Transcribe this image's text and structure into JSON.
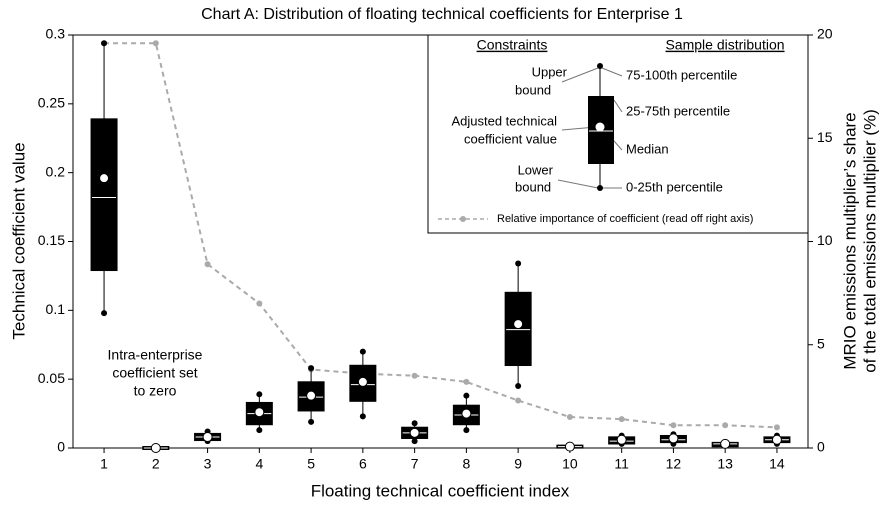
{
  "chart_data": {
    "type": "box",
    "title": "Chart A: Distribution of floating technical coefficients for Enterprise 1",
    "xlabel": "Floating technical coefficient index",
    "ylabel": "Technical coefficient value",
    "y2label": [
      "MRIO emissions multiplier’s share",
      "of the total emissions multiplier (%)"
    ],
    "x": [
      1,
      2,
      3,
      4,
      5,
      6,
      7,
      8,
      9,
      10,
      11,
      12,
      13,
      14
    ],
    "xlim": [
      0.4,
      14.6
    ],
    "xticks": [
      1,
      2,
      3,
      4,
      5,
      6,
      7,
      8,
      9,
      10,
      11,
      12,
      13,
      14
    ],
    "ylim": [
      0,
      0.3
    ],
    "yticks": [
      0,
      0.05,
      0.1,
      0.15,
      0.2,
      0.25,
      0.3
    ],
    "y2lim": [
      0,
      20
    ],
    "y2ticks": [
      0,
      5,
      10,
      15,
      20
    ],
    "boxes": {
      "color": "#000000",
      "whisker_low": [
        0.098,
        0,
        0.005,
        0.013,
        0.019,
        0.023,
        0.005,
        0.013,
        0.045,
        0.001,
        0.003,
        0.003,
        0.002,
        0.003
      ],
      "q1": [
        0.13,
        0,
        0.0065,
        0.018,
        0.028,
        0.035,
        0.008,
        0.018,
        0.061,
        0.001,
        0.004,
        0.005,
        0.002,
        0.005
      ],
      "median": [
        0.182,
        0,
        0.008,
        0.025,
        0.037,
        0.046,
        0.011,
        0.024,
        0.086,
        0.001,
        0.005,
        0.006,
        0.003,
        0.006
      ],
      "q3": [
        0.238,
        0,
        0.0095,
        0.032,
        0.047,
        0.059,
        0.014,
        0.03,
        0.112,
        0.001,
        0.007,
        0.008,
        0.003,
        0.007
      ],
      "whisker_high": [
        0.294,
        0,
        0.012,
        0.039,
        0.058,
        0.07,
        0.018,
        0.038,
        0.134,
        0.001,
        0.009,
        0.01,
        0.004,
        0.009
      ],
      "adjusted": [
        0.196,
        0,
        0.008,
        0.026,
        0.038,
        0.048,
        0.011,
        0.025,
        0.09,
        0.001,
        0.006,
        0.007,
        0.003,
        0.006
      ]
    },
    "line": {
      "name": "Relative importance of coefficient (read off right axis)",
      "color": "#aaaaaa",
      "axis": "y2",
      "values": [
        19.6,
        19.6,
        8.9,
        7.0,
        3.8,
        3.6,
        3.5,
        3.2,
        2.3,
        1.5,
        1.4,
        1.1,
        1.1,
        1.0
      ]
    },
    "annotation": [
      "Intra-enterprise",
      "coefficient set",
      "to zero"
    ],
    "legend": {
      "constraints_title": "Constraints",
      "distribution_title": "Sample distribution",
      "upper_bound": [
        "Upper",
        "bound"
      ],
      "adjusted": [
        "Adjusted technical",
        "coefficient value"
      ],
      "lower_bound": [
        "Lower",
        "bound"
      ],
      "p75_100": "75-100th percentile",
      "p25_75": "25-75th percentile",
      "median": "Median",
      "p0_25": "0-25th percentile"
    }
  }
}
